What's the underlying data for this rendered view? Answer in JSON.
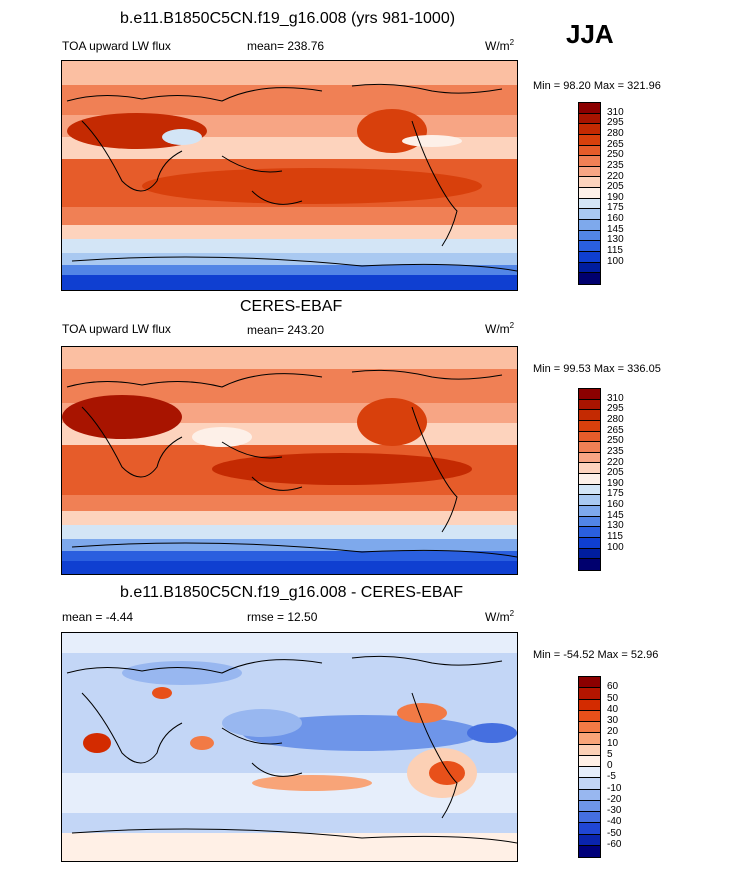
{
  "season": "JJA",
  "panels": [
    {
      "title": "b.e11.B1850C5CN.f19_g16.008 (yrs 981-1000)",
      "left_text": "TOA upward LW flux",
      "mid_text": "mean= 238.76",
      "units_base": "W/m",
      "units_exp": "2",
      "minmax": "Min =  98.20 Max = 321.96",
      "levels": [
        "310",
        "295",
        "280",
        "265",
        "250",
        "235",
        "220",
        "205",
        "190",
        "175",
        "160",
        "145",
        "130",
        "115",
        "100"
      ]
    },
    {
      "title": "CERES-EBAF",
      "left_text": "TOA upward LW flux",
      "mid_text": "mean= 243.20",
      "units_base": "W/m",
      "units_exp": "2",
      "minmax": "Min =  99.53 Max = 336.05",
      "levels": [
        "310",
        "295",
        "280",
        "265",
        "250",
        "235",
        "220",
        "205",
        "190",
        "175",
        "160",
        "145",
        "130",
        "115",
        "100"
      ]
    },
    {
      "title": "b.e11.B1850C5CN.f19_g16.008 - CERES-EBAF",
      "left_text": "mean =  -4.44",
      "mid_text": "rmse =  12.50",
      "units_base": "W/m",
      "units_exp": "2",
      "minmax": "Min = -54.52 Max =  52.96",
      "levels": [
        "60",
        "50",
        "40",
        "30",
        "20",
        "10",
        "5",
        "0",
        "-5",
        "-10",
        "-20",
        "-30",
        "-40",
        "-50",
        "-60"
      ]
    }
  ],
  "colors": {
    "flux_scale": [
      "#8b0000",
      "#a81400",
      "#c42a02",
      "#d8400c",
      "#e65c2a",
      "#f08055",
      "#f7a584",
      "#fdd3bd",
      "#fdf0e8",
      "#d3e5f6",
      "#a9c9f1",
      "#7ea9ec",
      "#5285e6",
      "#2a5fdf",
      "#0f3fd1",
      "#001d9e",
      "#00006e"
    ],
    "diff_scale": [
      "#8b0000",
      "#b31500",
      "#d32b00",
      "#e8501a",
      "#f27a45",
      "#f8a478",
      "#fcd0b5",
      "#fff0e6",
      "#e6eefb",
      "#c3d6f6",
      "#98b7f0",
      "#6e95e9",
      "#456fe0",
      "#2046d4",
      "#0a24ad",
      "#00007a"
    ]
  }
}
